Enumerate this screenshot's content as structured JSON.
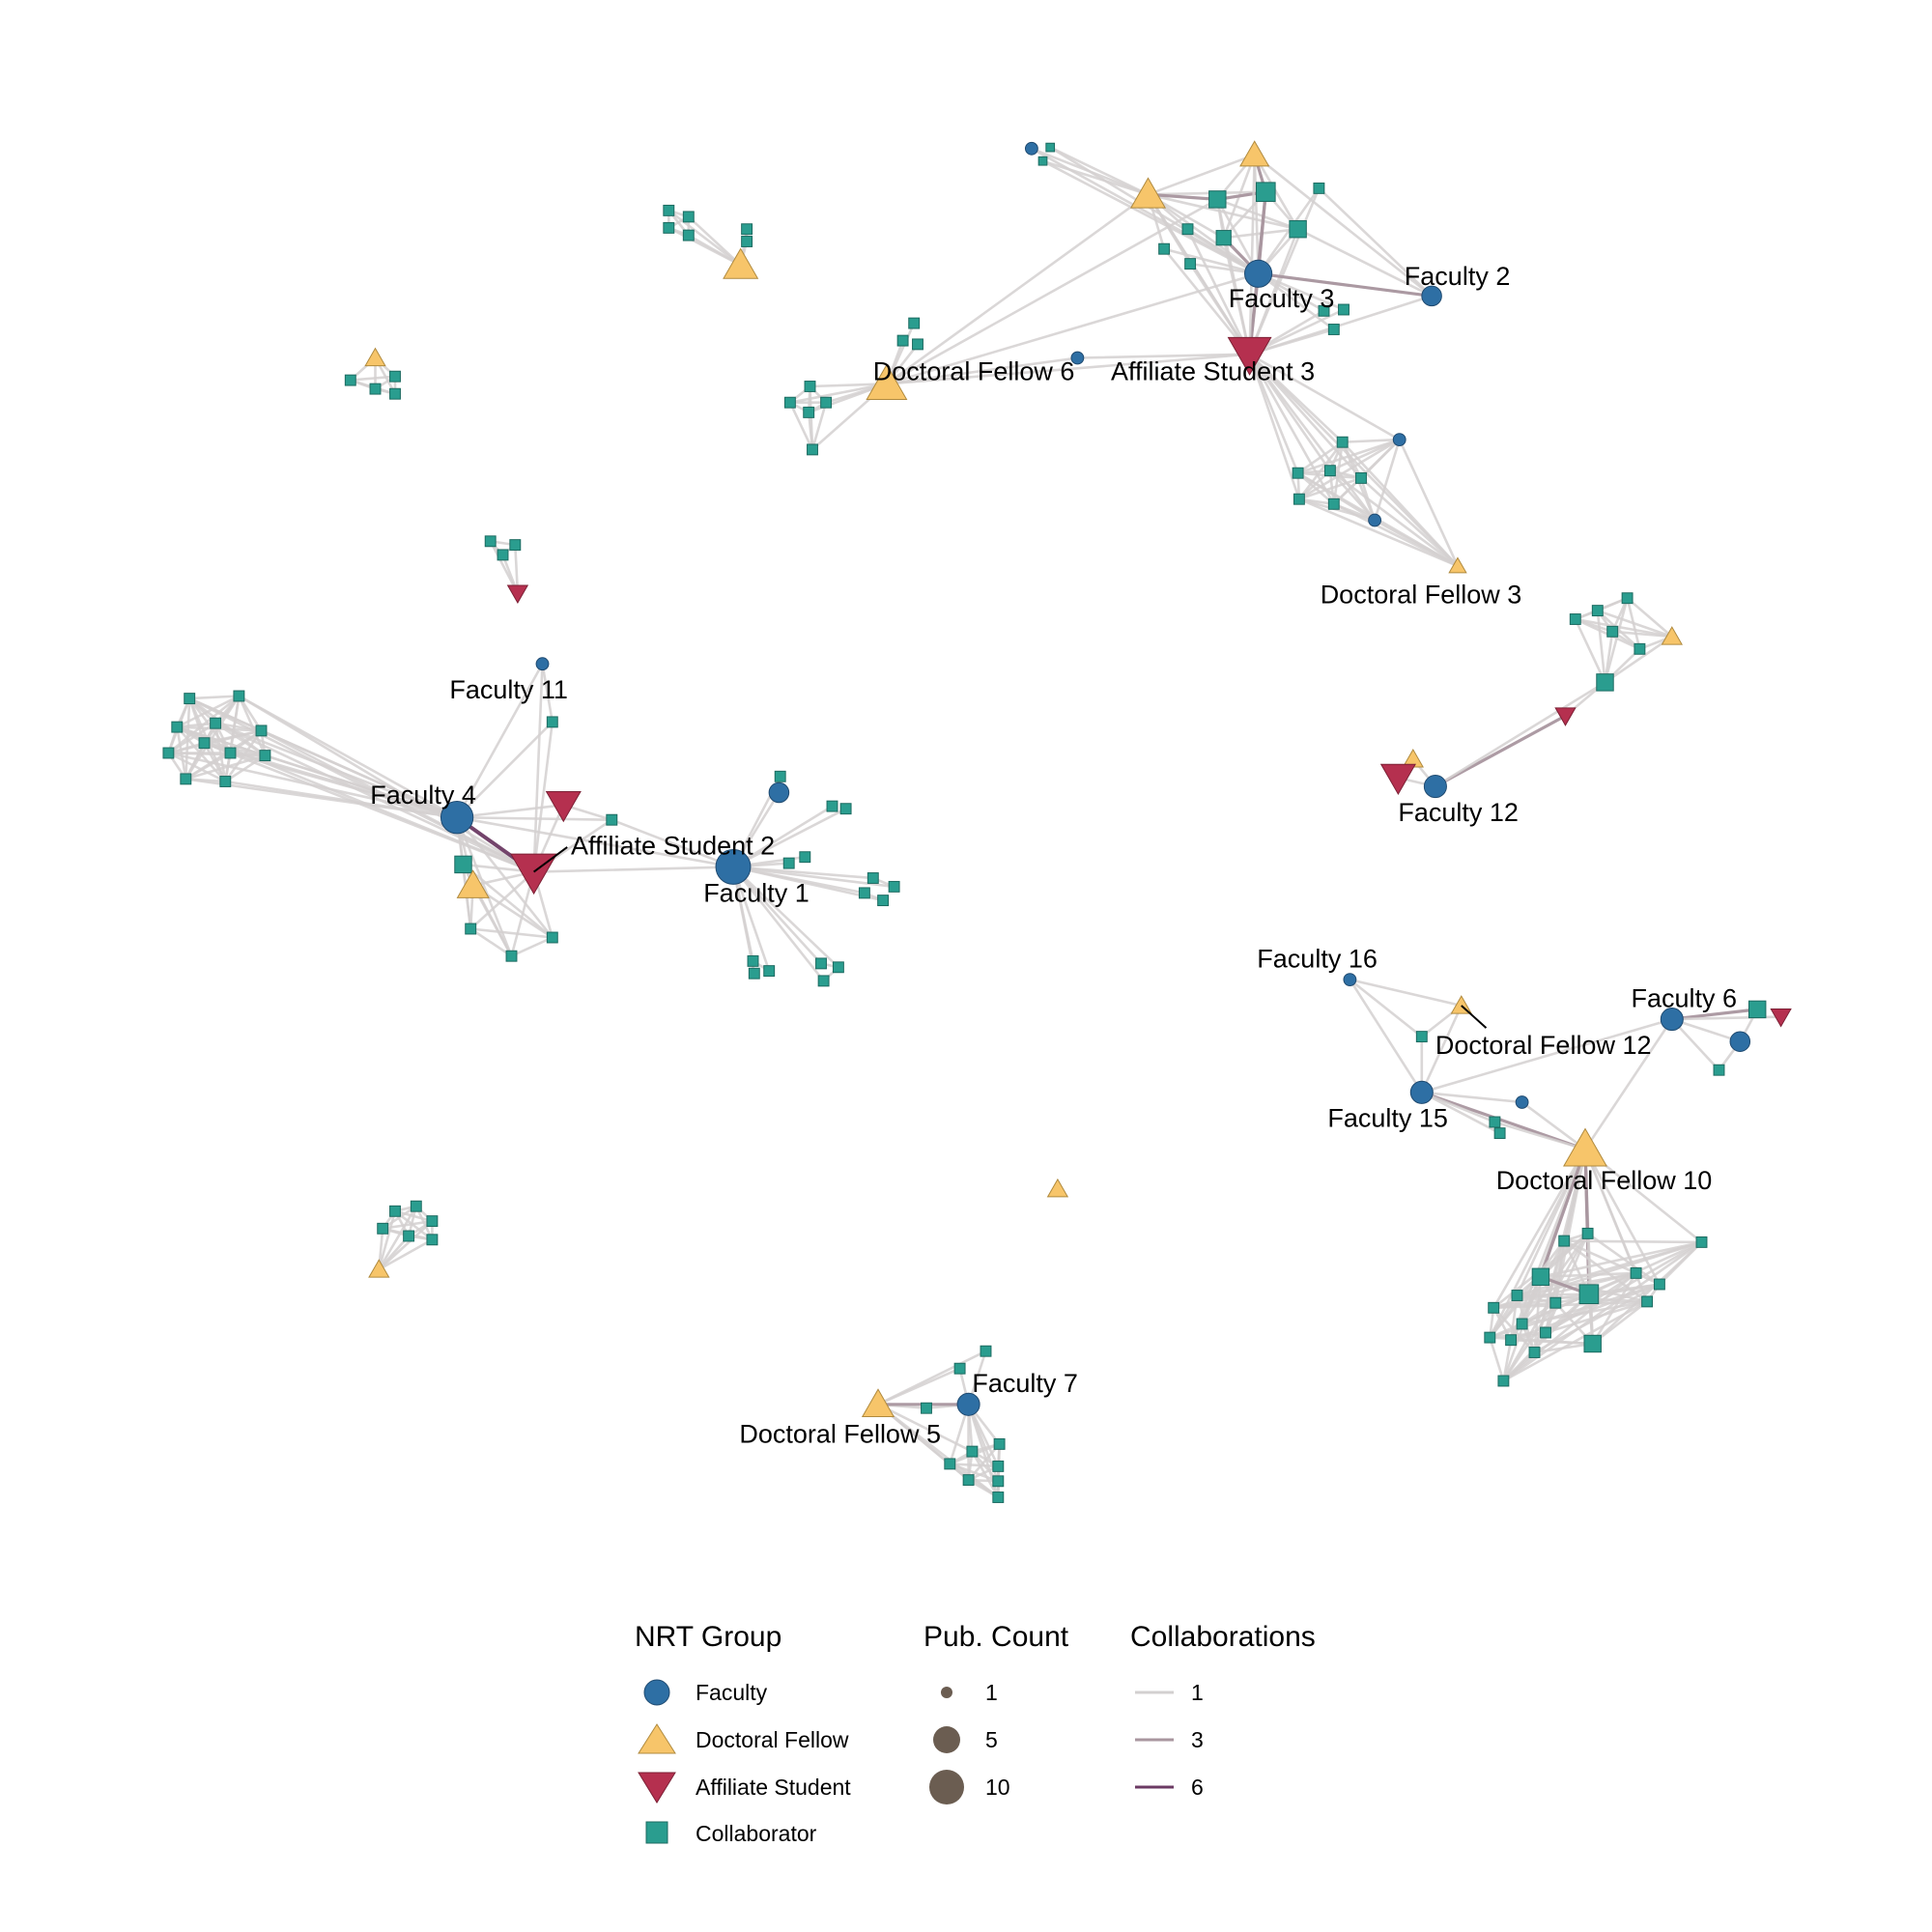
{
  "colors": {
    "faculty": "#2E6FA4",
    "doctoral_fellow": "#F7C56A",
    "affiliate_student": "#B5304F",
    "collaborator": "#2A9D8F",
    "edge_1": "#D3D0D0",
    "edge_3": "#A9969F",
    "edge_6": "#6B3A63",
    "pub_count": "#6B5D51"
  },
  "labels": [
    "Faculty 2",
    "Faculty 3",
    "Doctoral Fellow 6",
    "Affiliate Student 3",
    "Doctoral Fellow 3",
    "Faculty 11",
    "Faculty 4",
    "Affiliate Student 2",
    "Faculty 1",
    "Faculty 12",
    "Faculty 16",
    "Faculty 6",
    "Doctoral Fellow 12",
    "Faculty 15",
    "Doctoral Fellow 10",
    "Faculty 7",
    "Doctoral Fellow 5"
  ],
  "legend": {
    "group_title": "NRT Group",
    "groups": [
      {
        "label": "Faculty",
        "icon": "circle-icon"
      },
      {
        "label": "Doctoral Fellow",
        "icon": "triangle-up-icon"
      },
      {
        "label": "Affiliate Student",
        "icon": "triangle-down-icon"
      },
      {
        "label": "Collaborator",
        "icon": "square-icon"
      }
    ],
    "pub_title": "Pub. Count",
    "pub_items": [
      {
        "label": "1",
        "value": 1
      },
      {
        "label": "5",
        "value": 5
      },
      {
        "label": "10",
        "value": 10
      }
    ],
    "collab_title": "Collaborations",
    "collab_items": [
      {
        "label": "1",
        "value": 1
      },
      {
        "label": "3",
        "value": 3
      },
      {
        "label": "6",
        "value": 6
      }
    ]
  }
}
